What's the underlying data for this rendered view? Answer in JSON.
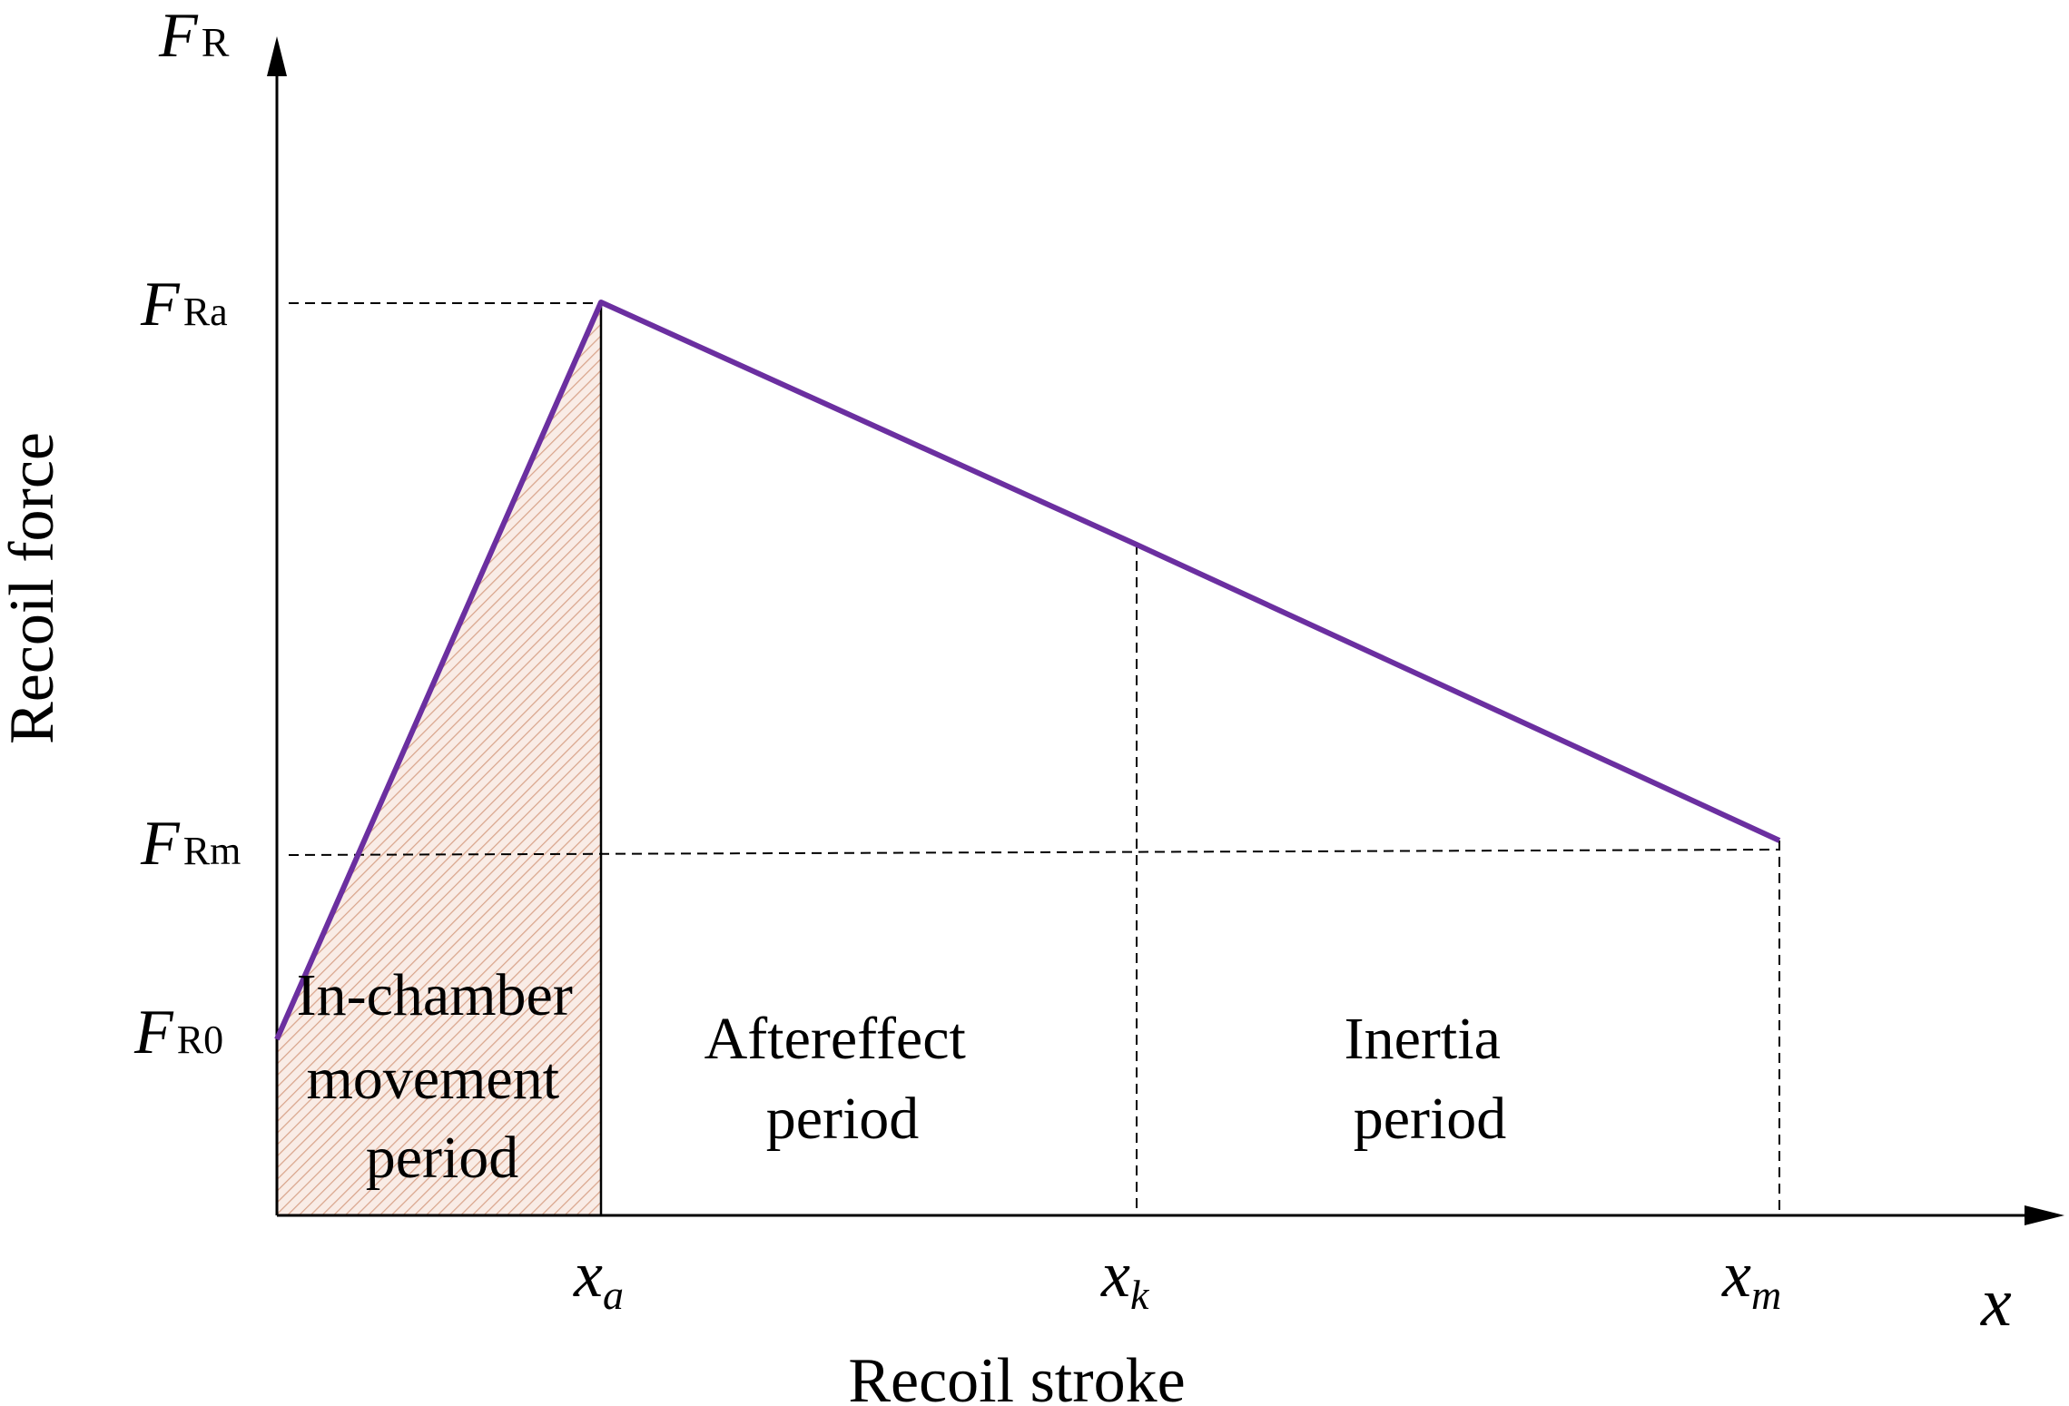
{
  "axes": {
    "y_symbol_main": "F",
    "y_symbol_sub": "R",
    "x_symbol": "x",
    "y_title": "Recoil force",
    "x_title": "Recoil stroke"
  },
  "y_ticks": [
    {
      "main": "F",
      "sub": "Ra"
    },
    {
      "main": "F",
      "sub": "Rm"
    },
    {
      "main": "F",
      "sub": "R0"
    }
  ],
  "x_ticks": [
    {
      "main": "x",
      "sub": "a"
    },
    {
      "main": "x",
      "sub": "k"
    },
    {
      "main": "x",
      "sub": "m"
    }
  ],
  "regions": [
    {
      "lines": [
        "In-chamber",
        "movement",
        "period"
      ]
    },
    {
      "lines": [
        "Aftereffect",
        "period"
      ]
    },
    {
      "lines": [
        "Inertia",
        "period"
      ]
    }
  ],
  "colors": {
    "curve": "#6b2fa0",
    "hatch_fill": "#f9ece6",
    "hatch_line": "#d9a58c",
    "axis": "#000000"
  }
}
